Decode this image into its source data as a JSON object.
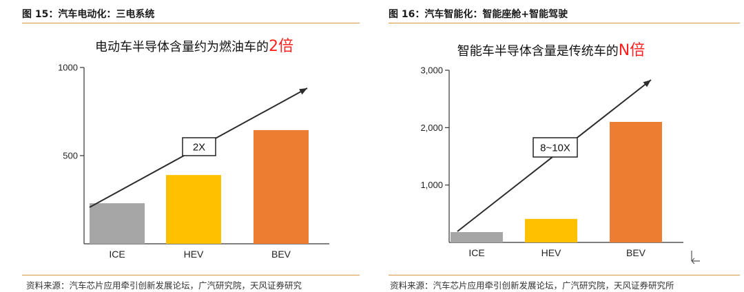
{
  "left": {
    "figure_title": "图 15：汽车电动化：三电系统",
    "source": "资料来源：汽车芯片应用牵引创新发展论坛，广汽研究院，天风证券研究",
    "chart_data": {
      "type": "bar",
      "title": "电动车半导体含量约为燃油车的",
      "title_emphasis": "2倍",
      "categories": [
        "ICE",
        "HEV",
        "BEV"
      ],
      "values": [
        230,
        390,
        645
      ],
      "yticks": [
        {
          "value": 500,
          "label": "500"
        },
        {
          "value": 1000,
          "label": "1000"
        }
      ],
      "ylim": [
        0,
        1000
      ],
      "annotation": "2X",
      "colors": [
        "#a6a6a6",
        "#ffc000",
        "#ed7d31"
      ]
    }
  },
  "right": {
    "figure_title": "图 16：汽车智能化：智能座舱+智能驾驶",
    "source": "资料来源：汽车芯片应用牵引创新发展论坛，广汽研究院，天风证券研究所",
    "chart_data": {
      "type": "bar",
      "title": "智能车半导体含量是传统车的",
      "title_emphasis": "N倍",
      "categories": [
        "ICE",
        "HEV",
        "BEV"
      ],
      "values": [
        180,
        410,
        2100
      ],
      "yticks": [
        {
          "value": 1000,
          "label": "1,000"
        },
        {
          "value": 2000,
          "label": "2,000"
        },
        {
          "value": 3000,
          "label": "3,000"
        }
      ],
      "ylim": [
        0,
        3000
      ],
      "annotation": "8~10X",
      "colors": [
        "#a6a6a6",
        "#ffc000",
        "#ed7d31"
      ]
    }
  }
}
